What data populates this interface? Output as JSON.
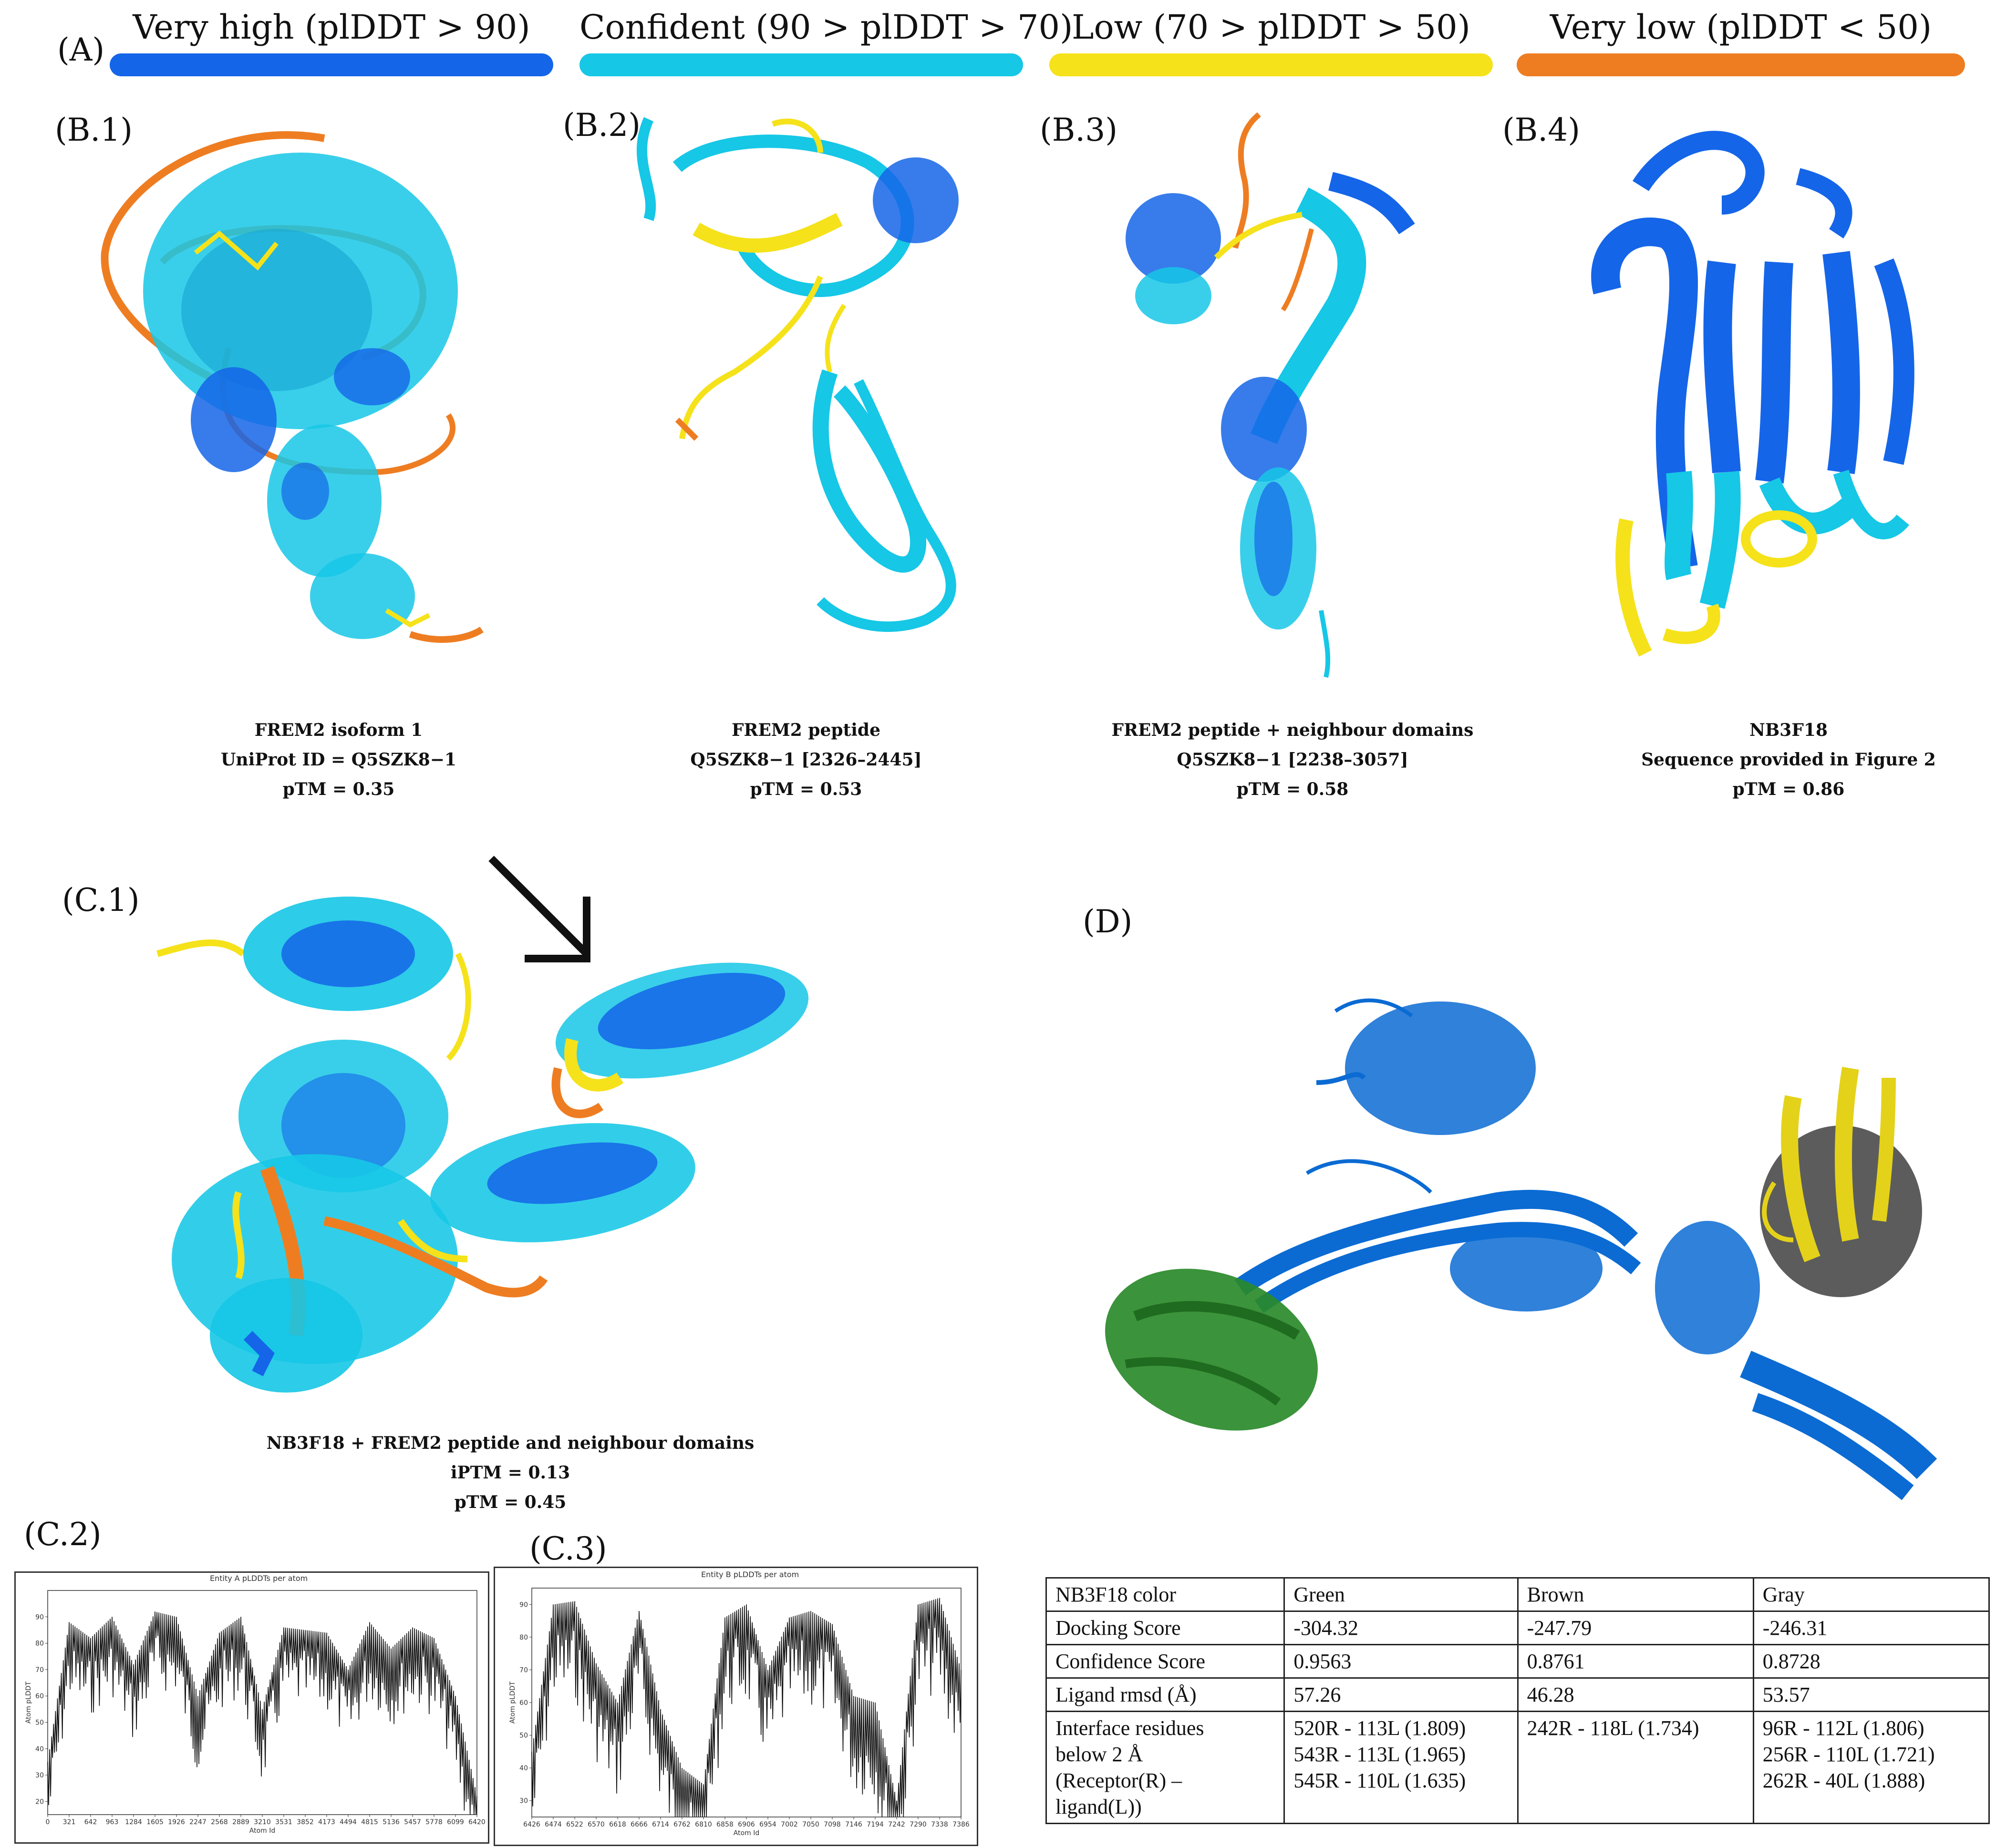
{
  "panels": {
    "A": "(A)",
    "B1": "(B.1)",
    "B2": "(B.2)",
    "B3": "(B.3)",
    "B4": "(B.4)",
    "C1": "(C.1)",
    "C2": "(C.2)",
    "C3": "(C.3)",
    "D": "(D)"
  },
  "legend": [
    {
      "label": "Very high (plDDT > 90)",
      "color": "#1565e8"
    },
    {
      "label": "Confident (90 > plDDT > 70)",
      "color": "#16c7e6"
    },
    {
      "label": "Low (70 > plDDT > 50)",
      "color": "#f5e21a"
    },
    {
      "label": "Very low (plDDT < 50)",
      "color": "#ee7d22"
    }
  ],
  "captions": {
    "B1": [
      "FREM2 isoform 1",
      "UniProt ID = Q5SZK8−1",
      "pTM = 0.35"
    ],
    "B2": [
      "FREM2 peptide",
      "Q5SZK8−1 [2326–2445]",
      "pTM = 0.53"
    ],
    "B3": [
      "FREM2 peptide + neighbour domains",
      "Q5SZK8−1 [2238–3057]",
      "pTM = 0.58"
    ],
    "B4": [
      "NB3F18",
      "Sequence provided in Figure 2",
      "pTM = 0.86"
    ],
    "C1": [
      "NB3F18 + FREM2 peptide and neighbour domains",
      "iPTM = 0.13",
      "pTM = 0.45"
    ]
  },
  "plots": {
    "C2": {
      "title": "Entity A pLDDTs per atom",
      "xlabel": "Atom Id",
      "ylabel": "Atom pLDDT",
      "xticks": [
        "0",
        "321",
        "642",
        "963",
        "1284",
        "1605",
        "1926",
        "2247",
        "2568",
        "2889",
        "3210",
        "3531",
        "3852",
        "4173",
        "4494",
        "4815",
        "5136",
        "5457",
        "5778",
        "6099",
        "6420"
      ],
      "yticks": [
        "20",
        "30",
        "40",
        "50",
        "60",
        "70",
        "80",
        "90"
      ]
    },
    "C3": {
      "title": "Entity B pLDDTs per atom",
      "xlabel": "Atom Id",
      "ylabel": "Atom pLDDT",
      "xticks": [
        "6426",
        "6474",
        "6522",
        "6570",
        "6618",
        "6666",
        "6714",
        "6762",
        "6810",
        "6858",
        "6906",
        "6954",
        "7002",
        "7050",
        "7098",
        "7146",
        "7194",
        "7242",
        "7290",
        "7338",
        "7386"
      ],
      "yticks": [
        "30",
        "40",
        "50",
        "60",
        "70",
        "80",
        "90"
      ]
    }
  },
  "chart_data": [
    {
      "type": "line",
      "title": "Entity A pLDDTs per atom",
      "xlabel": "Atom Id",
      "ylabel": "Atom pLDDT",
      "xlim": [
        0,
        6420
      ],
      "ylim": [
        15,
        100
      ],
      "x": [
        0,
        321,
        642,
        963,
        1284,
        1605,
        1926,
        2247,
        2568,
        2889,
        3210,
        3531,
        3852,
        4173,
        4494,
        4815,
        5136,
        5457,
        5778,
        6099,
        6420
      ],
      "values": [
        35,
        88,
        82,
        90,
        72,
        92,
        90,
        60,
        84,
        90,
        55,
        86,
        85,
        84,
        70,
        88,
        78,
        86,
        82,
        60,
        22
      ]
    },
    {
      "type": "line",
      "title": "Entity B pLDDTs per atom",
      "xlabel": "Atom Id",
      "ylabel": "Atom pLDDT",
      "xlim": [
        6426,
        7386
      ],
      "ylim": [
        25,
        95
      ],
      "x": [
        6426,
        6474,
        6522,
        6570,
        6618,
        6666,
        6714,
        6762,
        6810,
        6858,
        6906,
        6954,
        7002,
        7050,
        7098,
        7146,
        7194,
        7242,
        7290,
        7338,
        7386
      ],
      "values": [
        45,
        90,
        91,
        72,
        60,
        88,
        58,
        40,
        35,
        86,
        90,
        70,
        86,
        88,
        84,
        62,
        60,
        30,
        90,
        92,
        70
      ]
    }
  ],
  "table": {
    "headers": [
      "NB3F18 color",
      "Green",
      "Brown",
      "Gray"
    ],
    "rows": [
      [
        "Docking Score",
        "-304.32",
        "-247.79",
        "-246.31"
      ],
      [
        "Confidence Score",
        "0.9563",
        "0.8761",
        "0.8728"
      ],
      [
        "Ligand rmsd (Å)",
        "57.26",
        "46.28",
        "53.57"
      ]
    ],
    "interface": {
      "label": [
        "Interface residues",
        "below 2 Å",
        "(Receptor(R) –",
        "ligand(L))"
      ],
      "green": [
        "520R - 113L (1.809)",
        "543R - 113L (1.965)",
        "545R - 110L (1.635)"
      ],
      "brown": [
        "242R - 118L (1.734)"
      ],
      "gray": [
        "96R - 112L (1.806)",
        "256R - 110L (1.721)",
        "262R - 40L (1.888)"
      ]
    }
  }
}
